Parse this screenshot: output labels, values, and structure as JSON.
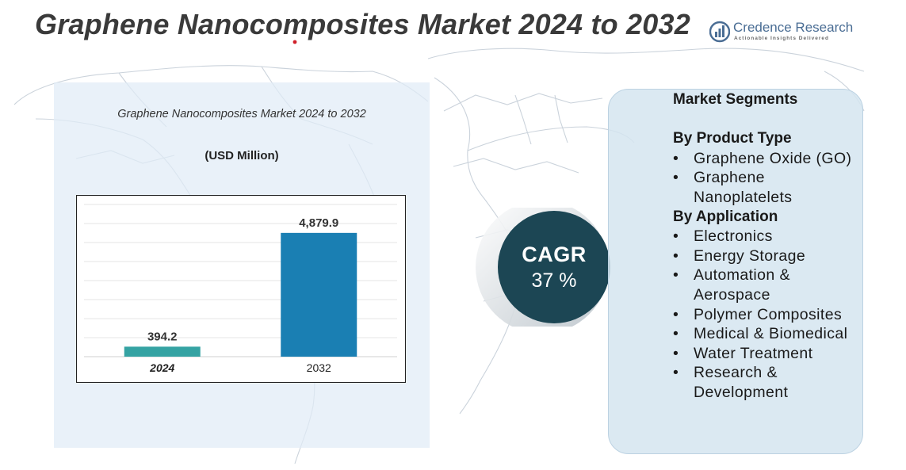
{
  "page": {
    "title": "Graphene Nanocomposites Market 2024 to 2032"
  },
  "brand": {
    "name": "Credence Research",
    "tagline": "Actionable Insights Delivered",
    "icon": "bar-chart-logo-icon",
    "color": "#4a6d94"
  },
  "chart_data": {
    "type": "bar",
    "title": "Graphene Nanocomposites Market 2024 to 2032",
    "subtitle": "(USD Million)",
    "categories": [
      "2024",
      "2032"
    ],
    "values": [
      394.2,
      4879.9
    ],
    "value_labels": [
      "394.2",
      "4,879.9"
    ],
    "bar_colors": [
      "#35a3a3",
      "#1a7fb3"
    ],
    "ylim": [
      0,
      6000
    ],
    "grid": true,
    "legend": "none"
  },
  "cagr": {
    "label": "CAGR",
    "value": "37 %",
    "color": "#1c4654"
  },
  "segments": {
    "heading": "Market Segments",
    "groups": [
      {
        "title": "By Product Type",
        "items": [
          "Graphene Oxide (GO)",
          "Graphene Nanoplatelets"
        ]
      },
      {
        "title": "By Application",
        "items": [
          "Electronics",
          "Energy Storage",
          "Automation & Aerospace",
          "Polymer Composites",
          "Medical & Biomedical",
          "Water Treatment",
          "Research & Development"
        ]
      }
    ]
  }
}
